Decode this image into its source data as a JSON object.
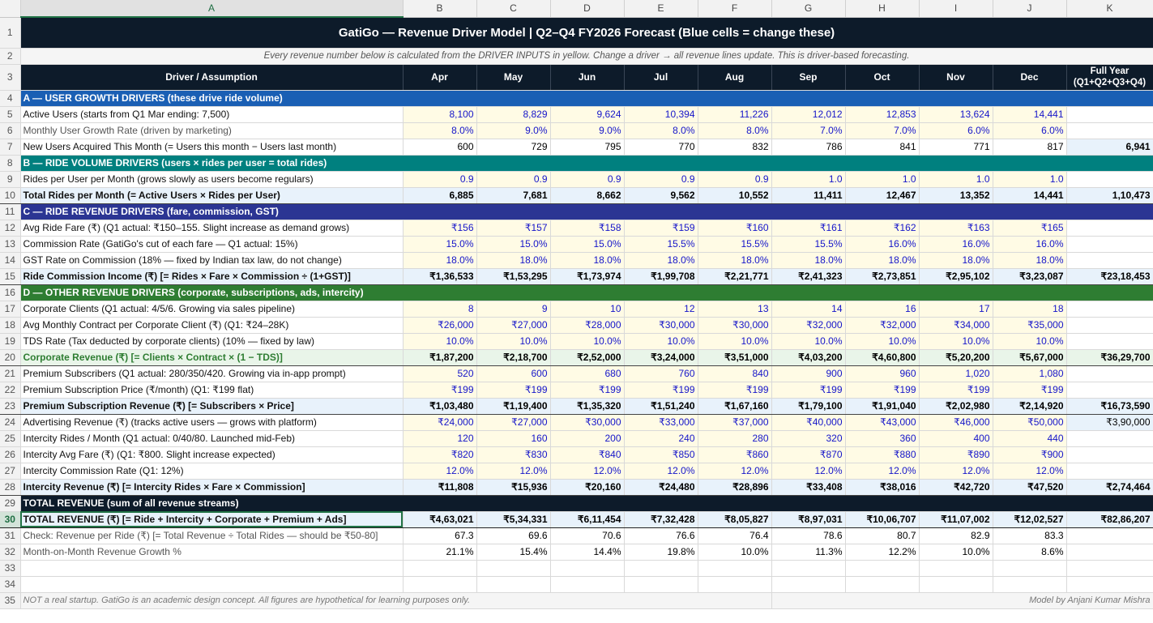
{
  "columns": [
    "A",
    "B",
    "C",
    "D",
    "E",
    "F",
    "G",
    "H",
    "I",
    "J",
    "K"
  ],
  "title": "GatiGo — Revenue Driver Model  |  Q2–Q4 FY2026 Forecast  (Blue cells = change these)",
  "note": "Every revenue number below is calculated from the DRIVER INPUTS in yellow. Change a driver → all revenue lines update. This is driver-based forecasting.",
  "header": {
    "label": "Driver / Assumption",
    "months": [
      "Apr",
      "May",
      "Jun",
      "Jul",
      "Aug",
      "Sep",
      "Oct",
      "Nov",
      "Dec"
    ],
    "fy1": "Full Year",
    "fy2": "(Q1+Q2+Q3+Q4)"
  },
  "rows": {
    "r4": "A — USER GROWTH DRIVERS  (these drive ride volume)",
    "r5": {
      "label": "Active Users  (starts from Q1 Mar ending: 7,500)",
      "v": [
        "8,100",
        "8,829",
        "9,624",
        "10,394",
        "11,226",
        "12,012",
        "12,853",
        "13,624",
        "14,441"
      ],
      "fy": ""
    },
    "r6": {
      "label": "Monthly User Growth Rate  (driven by marketing)",
      "v": [
        "8.0%",
        "9.0%",
        "9.0%",
        "8.0%",
        "8.0%",
        "7.0%",
        "7.0%",
        "6.0%",
        "6.0%"
      ],
      "fy": ""
    },
    "r7": {
      "label": "New Users Acquired This Month  (= Users this month − Users last month)",
      "v": [
        "600",
        "729",
        "795",
        "770",
        "832",
        "786",
        "841",
        "771",
        "817"
      ],
      "fy": "6,941"
    },
    "r8": "B — RIDE VOLUME DRIVERS  (users × rides per user = total rides)",
    "r9": {
      "label": "Rides per User per Month  (grows slowly as users become regulars)",
      "v": [
        "0.9",
        "0.9",
        "0.9",
        "0.9",
        "0.9",
        "1.0",
        "1.0",
        "1.0",
        "1.0"
      ],
      "fy": ""
    },
    "r10": {
      "label": "Total Rides per Month  (= Active Users × Rides per User)",
      "v": [
        "6,885",
        "7,681",
        "8,662",
        "9,562",
        "10,552",
        "11,411",
        "12,467",
        "13,352",
        "14,441"
      ],
      "fy": "1,10,473"
    },
    "r11": "C — RIDE REVENUE DRIVERS  (fare, commission, GST)",
    "r12": {
      "label": "Avg Ride Fare (₹)  (Q1 actual: ₹150–155. Slight increase as demand grows)",
      "v": [
        "₹156",
        "₹157",
        "₹158",
        "₹159",
        "₹160",
        "₹161",
        "₹162",
        "₹163",
        "₹165"
      ],
      "fy": ""
    },
    "r13": {
      "label": "Commission Rate  (GatiGo's cut of each fare — Q1 actual: 15%)",
      "v": [
        "15.0%",
        "15.0%",
        "15.0%",
        "15.5%",
        "15.5%",
        "15.5%",
        "16.0%",
        "16.0%",
        "16.0%"
      ],
      "fy": ""
    },
    "r14": {
      "label": "GST Rate on Commission  (18% — fixed by Indian tax law, do not change)",
      "v": [
        "18.0%",
        "18.0%",
        "18.0%",
        "18.0%",
        "18.0%",
        "18.0%",
        "18.0%",
        "18.0%",
        "18.0%"
      ],
      "fy": ""
    },
    "r15": {
      "label": "Ride Commission Income (₹)  [= Rides × Fare × Commission ÷ (1+GST)]",
      "v": [
        "₹1,36,533",
        "₹1,53,295",
        "₹1,73,974",
        "₹1,99,708",
        "₹2,21,771",
        "₹2,41,323",
        "₹2,73,851",
        "₹2,95,102",
        "₹3,23,087"
      ],
      "fy": "₹23,18,453"
    },
    "r16": "D — OTHER REVENUE DRIVERS  (corporate, subscriptions, ads, intercity)",
    "r17": {
      "label": "Corporate Clients  (Q1 actual: 4/5/6. Growing via sales pipeline)",
      "v": [
        "8",
        "9",
        "10",
        "12",
        "13",
        "14",
        "16",
        "17",
        "18"
      ],
      "fy": ""
    },
    "r18": {
      "label": "Avg Monthly Contract per Corporate Client (₹)  (Q1: ₹24–28K)",
      "v": [
        "₹26,000",
        "₹27,000",
        "₹28,000",
        "₹30,000",
        "₹30,000",
        "₹32,000",
        "₹32,000",
        "₹34,000",
        "₹35,000"
      ],
      "fy": ""
    },
    "r19": {
      "label": "TDS Rate (Tax deducted by corporate clients)  (10% — fixed by law)",
      "v": [
        "10.0%",
        "10.0%",
        "10.0%",
        "10.0%",
        "10.0%",
        "10.0%",
        "10.0%",
        "10.0%",
        "10.0%"
      ],
      "fy": ""
    },
    "r20": {
      "label": "Corporate Revenue (₹)  [= Clients × Contract × (1 − TDS)]",
      "v": [
        "₹1,87,200",
        "₹2,18,700",
        "₹2,52,000",
        "₹3,24,000",
        "₹3,51,000",
        "₹4,03,200",
        "₹4,60,800",
        "₹5,20,200",
        "₹5,67,000"
      ],
      "fy": "₹36,29,700"
    },
    "r21": {
      "label": "Premium Subscribers  (Q1 actual: 280/350/420. Growing via in-app prompt)",
      "v": [
        "520",
        "600",
        "680",
        "760",
        "840",
        "900",
        "960",
        "1,020",
        "1,080"
      ],
      "fy": ""
    },
    "r22": {
      "label": "Premium Subscription Price (₹/month)  (Q1: ₹199 flat)",
      "v": [
        "₹199",
        "₹199",
        "₹199",
        "₹199",
        "₹199",
        "₹199",
        "₹199",
        "₹199",
        "₹199"
      ],
      "fy": ""
    },
    "r23": {
      "label": "Premium Subscription Revenue (₹)  [= Subscribers × Price]",
      "v": [
        "₹1,03,480",
        "₹1,19,400",
        "₹1,35,320",
        "₹1,51,240",
        "₹1,67,160",
        "₹1,79,100",
        "₹1,91,040",
        "₹2,02,980",
        "₹2,14,920"
      ],
      "fy": "₹16,73,590"
    },
    "r24": {
      "label": "Advertising Revenue (₹)  (tracks active users — grows with platform)",
      "v": [
        "₹24,000",
        "₹27,000",
        "₹30,000",
        "₹33,000",
        "₹37,000",
        "₹40,000",
        "₹43,000",
        "₹46,000",
        "₹50,000"
      ],
      "fy": "₹3,90,000"
    },
    "r25": {
      "label": "Intercity Rides / Month  (Q1 actual: 0/40/80. Launched mid-Feb)",
      "v": [
        "120",
        "160",
        "200",
        "240",
        "280",
        "320",
        "360",
        "400",
        "440"
      ],
      "fy": ""
    },
    "r26": {
      "label": "Intercity Avg Fare (₹)  (Q1: ₹800. Slight increase expected)",
      "v": [
        "₹820",
        "₹830",
        "₹840",
        "₹850",
        "₹860",
        "₹870",
        "₹880",
        "₹890",
        "₹900"
      ],
      "fy": ""
    },
    "r27": {
      "label": "Intercity Commission Rate  (Q1: 12%)",
      "v": [
        "12.0%",
        "12.0%",
        "12.0%",
        "12.0%",
        "12.0%",
        "12.0%",
        "12.0%",
        "12.0%",
        "12.0%"
      ],
      "fy": ""
    },
    "r28": {
      "label": "Intercity Revenue (₹)  [= Intercity Rides × Fare × Commission]",
      "v": [
        "₹11,808",
        "₹15,936",
        "₹20,160",
        "₹24,480",
        "₹28,896",
        "₹33,408",
        "₹38,016",
        "₹42,720",
        "₹47,520"
      ],
      "fy": "₹2,74,464"
    },
    "r29": "TOTAL REVENUE  (sum of all revenue streams)",
    "r30": {
      "label": "TOTAL REVENUE (₹)  [= Ride + Intercity + Corporate + Premium + Ads]",
      "v": [
        "₹4,63,021",
        "₹5,34,331",
        "₹6,11,454",
        "₹7,32,428",
        "₹8,05,827",
        "₹8,97,031",
        "₹10,06,707",
        "₹11,07,002",
        "₹12,02,527"
      ],
      "fy": "₹82,86,207"
    },
    "r31": {
      "label": "Check: Revenue per Ride (₹)  [= Total Revenue ÷ Total Rides — should be ₹50-80]",
      "v": [
        "67.3",
        "69.6",
        "70.6",
        "76.6",
        "76.4",
        "78.6",
        "80.7",
        "82.9",
        "83.3"
      ],
      "fy": ""
    },
    "r32": {
      "label": "Month-on-Month Revenue Growth %",
      "v": [
        "21.1%",
        "15.4%",
        "14.4%",
        "19.8%",
        "10.0%",
        "11.3%",
        "12.2%",
        "10.0%",
        "8.6%"
      ],
      "fy": ""
    }
  },
  "footer": {
    "left": "NOT a real startup. GatiGo is an academic design concept. All figures are hypothetical for learning purposes only.",
    "right": "Model by Anjani Kumar Mishra"
  },
  "selected_cell": "A30"
}
